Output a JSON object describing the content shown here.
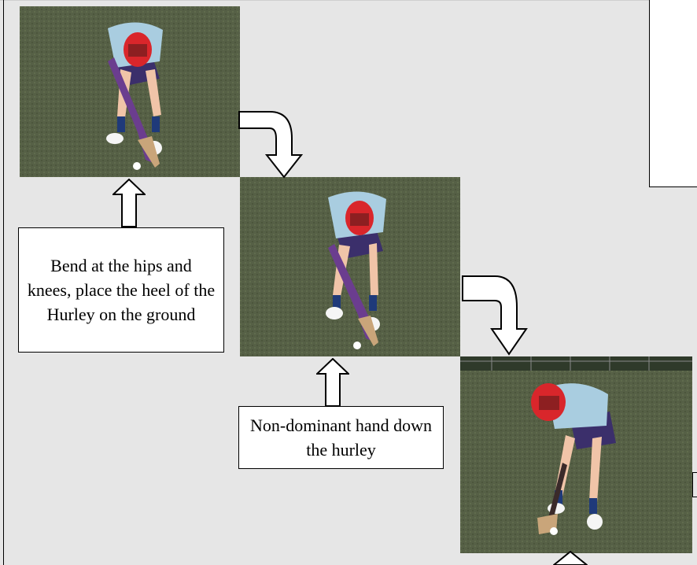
{
  "captions": {
    "step1": "Bend at the hips and knees, place the heel of the Hurley on the ground",
    "step2": "Non-dominant hand down the hurley"
  },
  "colors": {
    "background": "#e6e6e6",
    "grass": "#4f5a3c",
    "helmet": "#d9262b",
    "shirt": "#a9cde0",
    "shorts": "#3b2f6b"
  },
  "icons": {
    "flow_arrow": "curved-arrow-down-icon",
    "up_arrow": "up-arrow-icon"
  }
}
